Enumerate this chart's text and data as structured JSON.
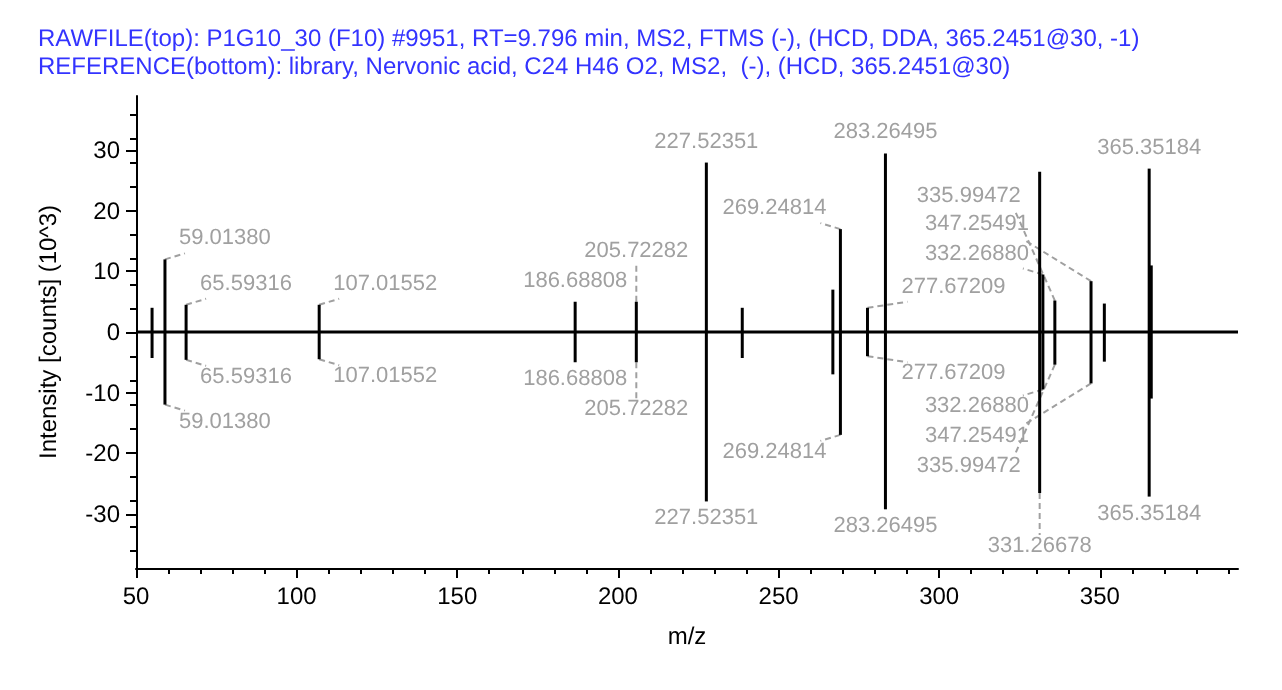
{
  "chart_data": {
    "type": "bar",
    "title": "RAWFILE(top): P1G10_30 (F10) #9951, RT=9.796 min, MS2, FTMS (-), (HCD, DDA, 365.2451@30, -1)",
    "subtitle": "REFERENCE(bottom): library, Nervonic acid, C24 H46 O2, MS2,  (-), (HCD, 365.2451@30)",
    "xlabel": "m/z",
    "ylabel": "Intensity [counts] (10^3)",
    "x": [
      55,
      59.0138,
      65.59316,
      107.01552,
      186.68808,
      205.72282,
      227.52351,
      238.7,
      266.9,
      269.24814,
      277.67209,
      283.26495,
      331.26678,
      332.2688,
      335.99472,
      347.25491,
      351.4,
      365.35184,
      366.0
    ],
    "series": [
      {
        "color": "#000000",
        "values": [
          4,
          12,
          4.5,
          4.5,
          5,
          5,
          28,
          4,
          7,
          17,
          4,
          29.5,
          26.5,
          9.5,
          5.2,
          8.4,
          4.7,
          27,
          11
        ]
      },
      {
        "color": "#000000",
        "values": [
          -4.3,
          -12,
          -4.6,
          -4.5,
          -5,
          -5,
          -28,
          -4.3,
          -7,
          -17,
          -4,
          -29.3,
          -26.6,
          -9.5,
          -5.4,
          -8.5,
          -4.9,
          -27.2,
          -11
        ]
      }
    ],
    "annotations": [
      {
        "text": "59.01380",
        "x": 59.0138,
        "y": 12
      },
      {
        "text": "65.59316",
        "x": 65.59316,
        "y": 4.5
      },
      {
        "text": "107.01552",
        "x": 107.01552,
        "y": 4.5
      },
      {
        "text": "186.68808",
        "x": 186.68808,
        "y": 5
      },
      {
        "text": "205.72282",
        "x": 205.72282,
        "y": 5
      },
      {
        "text": "227.52351",
        "x": 227.52351,
        "y": 28
      },
      {
        "text": "269.24814",
        "x": 269.24814,
        "y": 17
      },
      {
        "text": "277.67209",
        "x": 277.67209,
        "y": 4
      },
      {
        "text": "283.26495",
        "x": 283.26495,
        "y": 29.5
      },
      {
        "text": "332.26880",
        "x": 332.2688,
        "y": 9.5
      },
      {
        "text": "335.99472",
        "x": 335.99472,
        "y": 5.2
      },
      {
        "text": "347.25491",
        "x": 347.25491,
        "y": 8.4
      },
      {
        "text": "365.35184",
        "x": 365.35184,
        "y": 27
      },
      {
        "text": "59.01380",
        "x": 59.0138,
        "y": -12
      },
      {
        "text": "65.59316",
        "x": 65.59316,
        "y": -4.6
      },
      {
        "text": "107.01552",
        "x": 107.01552,
        "y": -4.5
      },
      {
        "text": "186.68808",
        "x": 186.68808,
        "y": -5
      },
      {
        "text": "205.72282",
        "x": 205.72282,
        "y": -5
      },
      {
        "text": "227.52351",
        "x": 227.52351,
        "y": -28
      },
      {
        "text": "269.24814",
        "x": 269.24814,
        "y": -17
      },
      {
        "text": "277.67209",
        "x": 277.67209,
        "y": -4
      },
      {
        "text": "283.26495",
        "x": 283.26495,
        "y": -29.3
      },
      {
        "text": "331.26678",
        "x": 331.26678,
        "y": -26.6
      },
      {
        "text": "332.26880",
        "x": 332.2688,
        "y": -9.5
      },
      {
        "text": "335.99472",
        "x": 335.99472,
        "y": -5.4
      },
      {
        "text": "347.25491",
        "x": 347.25491,
        "y": -8.5
      },
      {
        "text": "365.35184",
        "x": 365.35184,
        "y": -27.2
      }
    ],
    "xlim": [
      50,
      393
    ],
    "xticks": [
      50,
      100,
      150,
      200,
      250,
      300,
      350
    ],
    "ylim": [
      -39,
      39
    ],
    "yticks": [
      -30,
      -20,
      -10,
      0,
      10,
      20,
      30
    ],
    "ref_lines": [
      {
        "axis": "y",
        "value": 0,
        "color": "#000000"
      }
    ],
    "grid": false
  }
}
